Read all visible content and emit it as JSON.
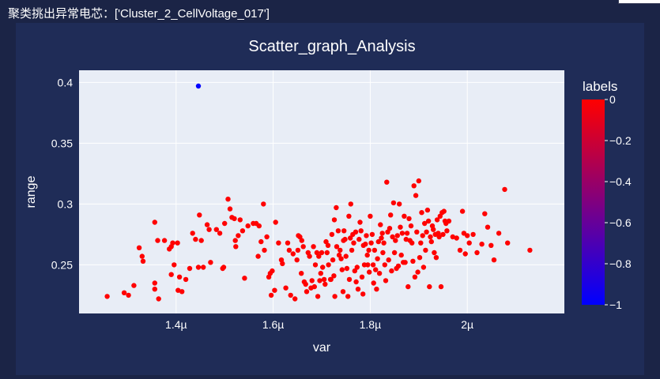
{
  "header": {
    "prefix": "聚类挑出异常电芯：",
    "value": "['Cluster_2_CellVoltage_017']"
  },
  "chart_data": {
    "type": "scatter",
    "title": "Scatter_graph_Analysis",
    "xlabel": "var",
    "ylabel": "range",
    "xlim": [
      1.2,
      2.2
    ],
    "ylim": [
      0.21,
      0.41
    ],
    "xticks": [
      1.4,
      1.6,
      1.8,
      2.0
    ],
    "xtick_labels": [
      "1.4µ",
      "1.6µ",
      "1.8µ",
      "2µ"
    ],
    "yticks": [
      0.25,
      0.3,
      0.35,
      0.4
    ],
    "ytick_labels": [
      "0.25",
      "0.3",
      "0.35",
      "0.4"
    ],
    "grid": true,
    "x_unit": "µ",
    "colorbar": {
      "title": "labels",
      "range": [
        -1,
        0
      ],
      "ticks": [
        0,
        -0.2,
        -0.4,
        -0.6,
        -0.8,
        -1
      ],
      "tick_labels": [
        "0",
        "−0.2",
        "−0.4",
        "−0.6",
        "−0.8",
        "−1"
      ],
      "colors": [
        "#0000ff",
        "#ff0000"
      ]
    },
    "series": [
      {
        "label": -1,
        "color": "#0000ff",
        "points": [
          [
            1.446,
            0.397
          ]
        ]
      },
      {
        "label": 0,
        "color": "#ff0000",
        "points": [
          [
            1.258,
            0.224
          ],
          [
            1.293,
            0.227
          ],
          [
            1.302,
            0.225
          ],
          [
            1.313,
            0.233
          ],
          [
            1.324,
            0.264
          ],
          [
            1.33,
            0.257
          ],
          [
            1.332,
            0.253
          ],
          [
            1.356,
            0.285
          ],
          [
            1.356,
            0.235
          ],
          [
            1.356,
            0.23
          ],
          [
            1.362,
            0.27
          ],
          [
            1.364,
            0.222
          ],
          [
            1.376,
            0.27
          ],
          [
            1.386,
            0.263
          ],
          [
            1.39,
            0.265
          ],
          [
            1.39,
            0.242
          ],
          [
            1.393,
            0.268
          ],
          [
            1.396,
            0.25
          ],
          [
            1.403,
            0.268
          ],
          [
            1.404,
            0.229
          ],
          [
            1.407,
            0.24
          ],
          [
            1.412,
            0.228
          ],
          [
            1.42,
            0.238
          ],
          [
            1.428,
            0.247
          ],
          [
            1.434,
            0.276
          ],
          [
            1.44,
            0.271
          ],
          [
            1.446,
            0.248
          ],
          [
            1.448,
            0.291
          ],
          [
            1.452,
            0.27
          ],
          [
            1.456,
            0.248
          ],
          [
            1.464,
            0.283
          ],
          [
            1.468,
            0.279
          ],
          [
            1.471,
            0.252
          ],
          [
            1.483,
            0.279
          ],
          [
            1.49,
            0.276
          ],
          [
            1.496,
            0.247
          ],
          [
            1.498,
            0.248
          ],
          [
            1.5,
            0.284
          ],
          [
            1.507,
            0.304
          ],
          [
            1.511,
            0.296
          ],
          [
            1.515,
            0.289
          ],
          [
            1.52,
            0.288
          ],
          [
            1.522,
            0.27
          ],
          [
            1.523,
            0.265
          ],
          [
            1.528,
            0.274
          ],
          [
            1.532,
            0.287
          ],
          [
            1.537,
            0.278
          ],
          [
            1.541,
            0.239
          ],
          [
            1.548,
            0.282
          ],
          [
            1.559,
            0.284
          ],
          [
            1.565,
            0.284
          ],
          [
            1.569,
            0.257
          ],
          [
            1.571,
            0.282
          ],
          [
            1.575,
            0.269
          ],
          [
            1.58,
            0.3
          ],
          [
            1.582,
            0.262
          ],
          [
            1.587,
            0.273
          ],
          [
            1.591,
            0.24
          ],
          [
            1.594,
            0.243
          ],
          [
            1.596,
            0.225
          ],
          [
            1.598,
            0.245
          ],
          [
            1.603,
            0.229
          ],
          [
            1.605,
            0.285
          ],
          [
            1.611,
            0.268
          ],
          [
            1.617,
            0.254
          ],
          [
            1.619,
            0.251
          ],
          [
            1.626,
            0.231
          ],
          [
            1.63,
            0.268
          ],
          [
            1.633,
            0.262
          ],
          [
            1.636,
            0.225
          ],
          [
            1.641,
            0.259
          ],
          [
            1.645,
            0.222
          ],
          [
            1.649,
            0.254
          ],
          [
            1.651,
            0.262
          ],
          [
            1.652,
            0.274
          ],
          [
            1.655,
            0.273
          ],
          [
            1.658,
            0.243
          ],
          [
            1.659,
            0.27
          ],
          [
            1.662,
            0.265
          ],
          [
            1.664,
            0.236
          ],
          [
            1.667,
            0.234
          ],
          [
            1.669,
            0.228
          ],
          [
            1.672,
            0.26
          ],
          [
            1.675,
            0.257
          ],
          [
            1.678,
            0.231
          ],
          [
            1.68,
            0.237
          ],
          [
            1.683,
            0.265
          ],
          [
            1.685,
            0.232
          ],
          [
            1.687,
            0.25
          ],
          [
            1.69,
            0.26
          ],
          [
            1.692,
            0.224
          ],
          [
            1.694,
            0.257
          ],
          [
            1.696,
            0.237
          ],
          [
            1.698,
            0.243
          ],
          [
            1.7,
            0.26
          ],
          [
            1.702,
            0.248
          ],
          [
            1.705,
            0.238
          ],
          [
            1.707,
            0.234
          ],
          [
            1.709,
            0.269
          ],
          [
            1.711,
            0.26
          ],
          [
            1.713,
            0.266
          ],
          [
            1.714,
            0.25
          ],
          [
            1.718,
            0.238
          ],
          [
            1.719,
            0.238
          ],
          [
            1.721,
            0.275
          ],
          [
            1.723,
            0.254
          ],
          [
            1.725,
            0.241
          ],
          [
            1.726,
            0.287
          ],
          [
            1.727,
            0.224
          ],
          [
            1.73,
            0.297
          ],
          [
            1.731,
            0.265
          ],
          [
            1.734,
            0.278
          ],
          [
            1.736,
            0.258
          ],
          [
            1.738,
            0.262
          ],
          [
            1.74,
            0.255
          ],
          [
            1.742,
            0.246
          ],
          [
            1.744,
            0.228
          ],
          [
            1.745,
            0.27
          ],
          [
            1.746,
            0.278
          ],
          [
            1.748,
            0.271
          ],
          [
            1.75,
            0.257
          ],
          [
            1.752,
            0.247
          ],
          [
            1.754,
            0.224
          ],
          [
            1.756,
            0.29
          ],
          [
            1.757,
            0.238
          ],
          [
            1.759,
            0.272
          ],
          [
            1.76,
            0.3
          ],
          [
            1.762,
            0.262
          ],
          [
            1.764,
            0.275
          ],
          [
            1.766,
            0.268
          ],
          [
            1.768,
            0.245
          ],
          [
            1.77,
            0.277
          ],
          [
            1.771,
            0.236
          ],
          [
            1.773,
            0.248
          ],
          [
            1.775,
            0.23
          ],
          [
            1.777,
            0.271
          ],
          [
            1.779,
            0.285
          ],
          [
            1.781,
            0.278
          ],
          [
            1.783,
            0.24
          ],
          [
            1.785,
            0.226
          ],
          [
            1.786,
            0.266
          ],
          [
            1.788,
            0.25
          ],
          [
            1.79,
            0.267
          ],
          [
            1.792,
            0.274
          ],
          [
            1.794,
            0.258
          ],
          [
            1.795,
            0.25
          ],
          [
            1.797,
            0.262
          ],
          [
            1.798,
            0.244
          ],
          [
            1.8,
            0.29
          ],
          [
            1.802,
            0.268
          ],
          [
            1.804,
            0.275
          ],
          [
            1.806,
            0.25
          ],
          [
            1.807,
            0.235
          ],
          [
            1.809,
            0.262
          ],
          [
            1.811,
            0.246
          ],
          [
            1.813,
            0.23
          ],
          [
            1.815,
            0.255
          ],
          [
            1.817,
            0.269
          ],
          [
            1.819,
            0.243
          ],
          [
            1.821,
            0.283
          ],
          [
            1.823,
            0.272
          ],
          [
            1.825,
            0.276
          ],
          [
            1.826,
            0.26
          ],
          [
            1.828,
            0.268
          ],
          [
            1.83,
            0.25
          ],
          [
            1.832,
            0.237
          ],
          [
            1.834,
            0.318
          ],
          [
            1.836,
            0.277
          ],
          [
            1.838,
            0.254
          ],
          [
            1.84,
            0.28
          ],
          [
            1.842,
            0.291
          ],
          [
            1.844,
            0.245
          ],
          [
            1.846,
            0.273
          ],
          [
            1.848,
            0.301
          ],
          [
            1.85,
            0.26
          ],
          [
            1.852,
            0.27
          ],
          [
            1.854,
            0.247
          ],
          [
            1.856,
            0.274
          ],
          [
            1.858,
            0.249
          ],
          [
            1.86,
            0.3
          ],
          [
            1.862,
            0.281
          ],
          [
            1.864,
            0.258
          ],
          [
            1.866,
            0.276
          ],
          [
            1.868,
            0.252
          ],
          [
            1.87,
            0.29
          ],
          [
            1.872,
            0.252
          ],
          [
            1.874,
            0.271
          ],
          [
            1.876,
            0.276
          ],
          [
            1.878,
            0.232
          ],
          [
            1.88,
            0.288
          ],
          [
            1.882,
            0.27
          ],
          [
            1.884,
            0.282
          ],
          [
            1.886,
            0.268
          ],
          [
            1.888,
            0.253
          ],
          [
            1.89,
            0.315
          ],
          [
            1.892,
            0.24
          ],
          [
            1.894,
            0.307
          ],
          [
            1.896,
            0.277
          ],
          [
            1.898,
            0.244
          ],
          [
            1.9,
            0.319
          ],
          [
            1.902,
            0.256
          ],
          [
            1.904,
            0.268
          ],
          [
            1.906,
            0.293
          ],
          [
            1.908,
            0.274
          ],
          [
            1.91,
            0.248
          ],
          [
            1.912,
            0.284
          ],
          [
            1.914,
            0.262
          ],
          [
            1.916,
            0.277
          ],
          [
            1.918,
            0.295
          ],
          [
            1.92,
            0.286
          ],
          [
            1.922,
            0.232
          ],
          [
            1.924,
            0.273
          ],
          [
            1.926,
            0.269
          ],
          [
            1.928,
            0.282
          ],
          [
            1.93,
            0.279
          ],
          [
            1.932,
            0.26
          ],
          [
            1.934,
            0.275
          ],
          [
            1.936,
            0.256
          ],
          [
            1.938,
            0.287
          ],
          [
            1.94,
            0.276
          ],
          [
            1.942,
            0.273
          ],
          [
            1.944,
            0.29
          ],
          [
            1.946,
            0.232
          ],
          [
            1.948,
            0.293
          ],
          [
            1.95,
            0.275
          ],
          [
            1.952,
            0.294
          ],
          [
            1.954,
            0.286
          ],
          [
            1.956,
            0.284
          ],
          [
            1.958,
            0.278
          ],
          [
            1.962,
            0.286
          ],
          [
            1.97,
            0.273
          ],
          [
            1.978,
            0.272
          ],
          [
            1.985,
            0.262
          ],
          [
            1.99,
            0.294
          ],
          [
            1.993,
            0.276
          ],
          [
            1.996,
            0.259
          ],
          [
            2.0,
            0.274
          ],
          [
            2.004,
            0.268
          ],
          [
            2.012,
            0.275
          ],
          [
            2.02,
            0.26
          ],
          [
            2.03,
            0.267
          ],
          [
            2.036,
            0.292
          ],
          [
            2.042,
            0.281
          ],
          [
            2.049,
            0.266
          ],
          [
            2.055,
            0.254
          ],
          [
            2.065,
            0.276
          ],
          [
            2.077,
            0.312
          ],
          [
            2.083,
            0.268
          ],
          [
            2.129,
            0.262
          ]
        ]
      }
    ]
  }
}
